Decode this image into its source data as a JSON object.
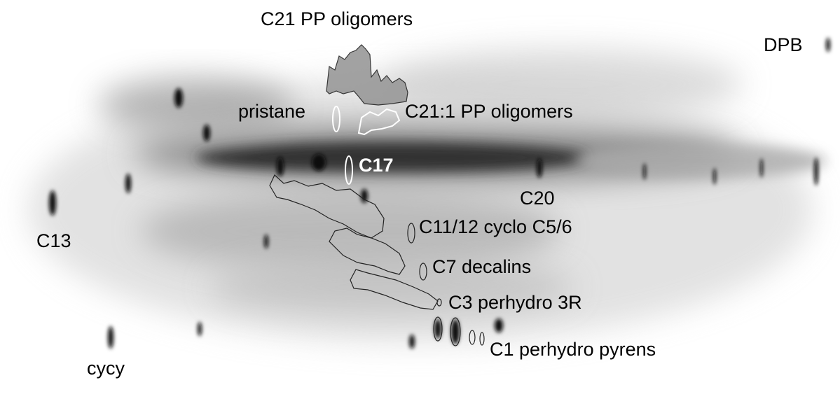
{
  "annotations": [
    "C21 PP oligomers",
    "DPB",
    "pristane",
    "C21:1 PP oligomers",
    "C17",
    "C20",
    "C13",
    "C11/12 cyclo C5/6",
    "C7 decalins",
    "C3 perhydro 3R",
    "C1 perhydro pyrens",
    "cycy"
  ]
}
